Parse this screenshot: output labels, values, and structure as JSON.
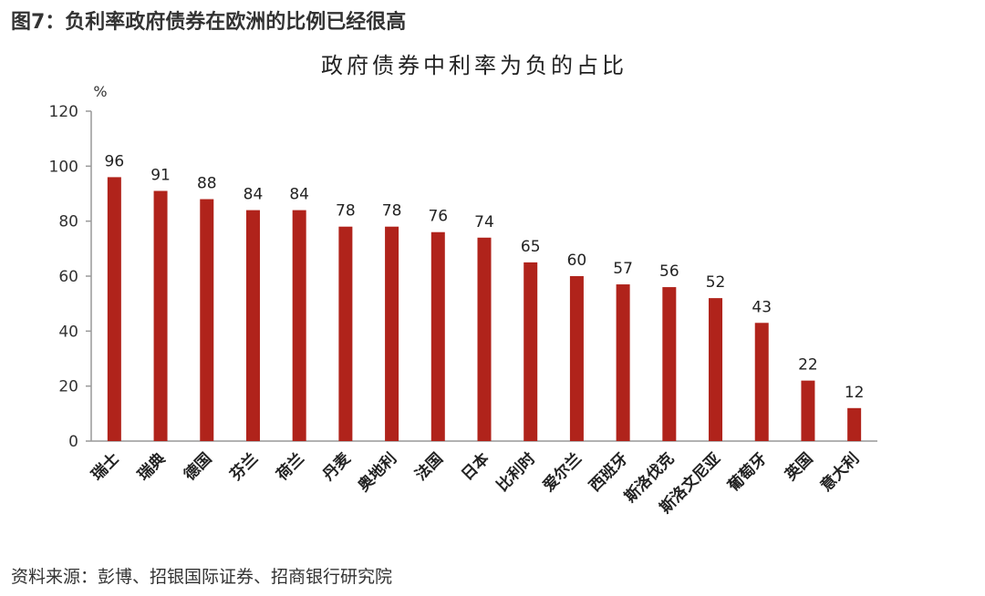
{
  "figure": {
    "heading": "图7：负利率政府债券在欧洲的比例已经很高",
    "source": "资料来源：彭博、招银国际证券、招商银行研究院"
  },
  "chart_data": {
    "type": "bar",
    "title": "政府债券中利率为负的占比",
    "xlabel": "",
    "ylabel": "%",
    "ylim": [
      0,
      120
    ],
    "yticks": [
      0,
      20,
      40,
      60,
      80,
      100,
      120
    ],
    "grid": false,
    "legend": "none",
    "bar_color": "#b0231b",
    "categories": [
      "瑞士",
      "瑞典",
      "德国",
      "芬兰",
      "荷兰",
      "丹麦",
      "奥地利",
      "法国",
      "日本",
      "比利时",
      "爱尔兰",
      "西班牙",
      "斯洛伐克",
      "斯洛文尼亚",
      "葡萄牙",
      "英国",
      "意大利"
    ],
    "values": [
      96,
      91,
      88,
      84,
      84,
      78,
      78,
      76,
      74,
      65,
      60,
      57,
      56,
      52,
      43,
      22,
      12
    ]
  }
}
